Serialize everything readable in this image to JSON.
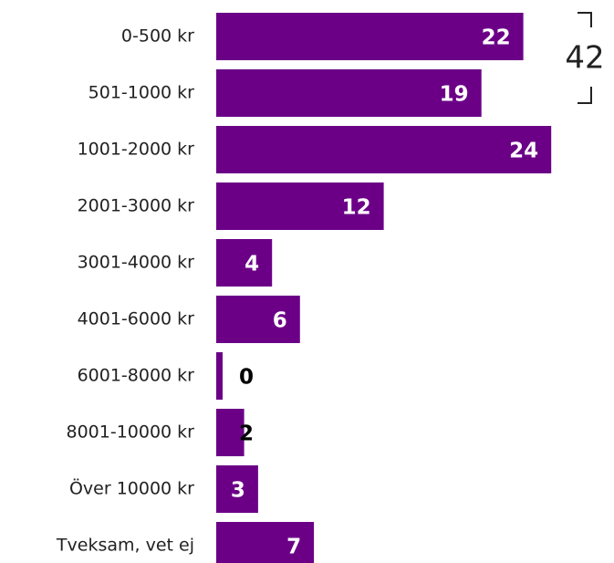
{
  "chart_data": {
    "type": "bar",
    "orientation": "horizontal",
    "categories": [
      "0-500 kr",
      "501-1000 kr",
      "1001-2000 kr",
      "2001-3000 kr",
      "3001-4000 kr",
      "4001-6000 kr",
      "6001-8000 kr",
      "8001-10000 kr",
      "Över 10000 kr",
      "Tveksam, vet ej"
    ],
    "values": [
      22,
      19,
      24,
      12,
      4,
      6,
      0,
      2,
      3,
      7
    ],
    "color": "#6b0087",
    "annotation": "42"
  }
}
